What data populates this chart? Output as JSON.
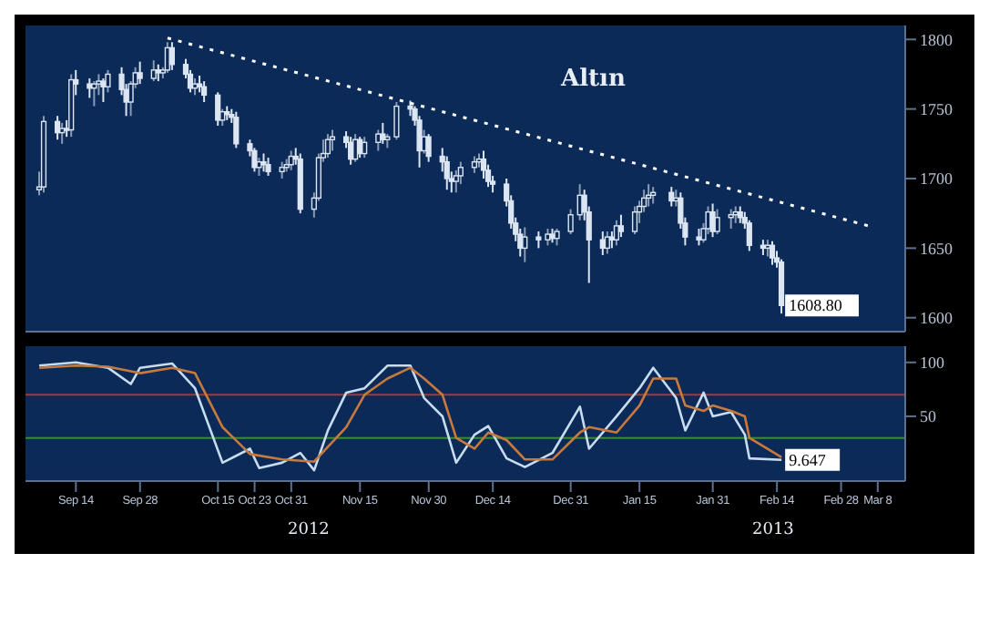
{
  "chart_data": [
    {
      "type": "candlestick",
      "color": "#dce6f2",
      "xlim": [
        "2012-09-03",
        "2013-03-14"
      ],
      "ylim": [
        1590,
        1810
      ],
      "yticks": [
        1600,
        1650,
        1700,
        1750,
        1800
      ],
      "tick_labels": "y",
      "marker": "none",
      "x": [
        "2012-09-06",
        "2012-09-07",
        "2012-09-10",
        "2012-09-11",
        "2012-09-12",
        "2012-09-13",
        "2012-09-14",
        "2012-09-17",
        "2012-09-18",
        "2012-09-19",
        "2012-09-20",
        "2012-09-21",
        "2012-09-24",
        "2012-09-25",
        "2012-09-26",
        "2012-09-27",
        "2012-09-28",
        "2012-10-01",
        "2012-10-02",
        "2012-10-03",
        "2012-10-04",
        "2012-10-05",
        "2012-10-08",
        "2012-10-09",
        "2012-10-10",
        "2012-10-11",
        "2012-10-12",
        "2012-10-15",
        "2012-10-16",
        "2012-10-17",
        "2012-10-18",
        "2012-10-19",
        "2012-10-22",
        "2012-10-23",
        "2012-10-24",
        "2012-10-25",
        "2012-10-26",
        "2012-10-29",
        "2012-10-30",
        "2012-10-31",
        "2012-11-01",
        "2012-11-02",
        "2012-11-05",
        "2012-11-06",
        "2012-11-07",
        "2012-11-08",
        "2012-11-09",
        "2012-11-12",
        "2012-11-13",
        "2012-11-14",
        "2012-11-15",
        "2012-11-16",
        "2012-11-19",
        "2012-11-20",
        "2012-11-21",
        "2012-11-23",
        "2012-11-26",
        "2012-11-27",
        "2012-11-28",
        "2012-11-29",
        "2012-11-30",
        "2012-12-03",
        "2012-12-04",
        "2012-12-05",
        "2012-12-06",
        "2012-12-07",
        "2012-12-10",
        "2012-12-11",
        "2012-12-12",
        "2012-12-13",
        "2012-12-14",
        "2012-12-17",
        "2012-12-18",
        "2012-12-19",
        "2012-12-20",
        "2012-12-21",
        "2012-12-24",
        "2012-12-26",
        "2012-12-27",
        "2012-12-28",
        "2012-12-31",
        "2013-01-02",
        "2013-01-03",
        "2013-01-04",
        "2013-01-07",
        "2013-01-08",
        "2013-01-09",
        "2013-01-10",
        "2013-01-11",
        "2013-01-14",
        "2013-01-15",
        "2013-01-16",
        "2013-01-17",
        "2013-01-18",
        "2013-01-22",
        "2013-01-23",
        "2013-01-24",
        "2013-01-25",
        "2013-01-28",
        "2013-01-29",
        "2013-01-30",
        "2013-01-31",
        "2013-02-01",
        "2013-02-04",
        "2013-02-05",
        "2013-02-06",
        "2013-02-07",
        "2013-02-08",
        "2013-02-11",
        "2013-02-12",
        "2013-02-13",
        "2013-02-14",
        "2013-02-15"
      ],
      "ohlc": [
        [
          1692,
          1705,
          1688,
          1694
        ],
        [
          1694,
          1745,
          1690,
          1741
        ],
        [
          1741,
          1745,
          1728,
          1733
        ],
        [
          1733,
          1740,
          1725,
          1736
        ],
        [
          1736,
          1742,
          1730,
          1735
        ],
        [
          1735,
          1775,
          1730,
          1771
        ],
        [
          1771,
          1778,
          1760,
          1768
        ],
        [
          1768,
          1772,
          1758,
          1765
        ],
        [
          1765,
          1770,
          1752,
          1768
        ],
        [
          1768,
          1775,
          1760,
          1770
        ],
        [
          1770,
          1772,
          1755,
          1766
        ],
        [
          1766,
          1778,
          1762,
          1775
        ],
        [
          1775,
          1780,
          1760,
          1764
        ],
        [
          1764,
          1768,
          1745,
          1755
        ],
        [
          1755,
          1770,
          1745,
          1768
        ],
        [
          1768,
          1780,
          1765,
          1776
        ],
        [
          1776,
          1784,
          1768,
          1772
        ],
        [
          1772,
          1785,
          1770,
          1778
        ],
        [
          1778,
          1782,
          1770,
          1776
        ],
        [
          1776,
          1780,
          1772,
          1778
        ],
        [
          1778,
          1798,
          1776,
          1794
        ],
        [
          1794,
          1798,
          1778,
          1782
        ],
        [
          1782,
          1786,
          1772,
          1775
        ],
        [
          1775,
          1778,
          1762,
          1765
        ],
        [
          1765,
          1772,
          1760,
          1768
        ],
        [
          1768,
          1774,
          1762,
          1766
        ],
        [
          1766,
          1770,
          1755,
          1760
        ],
        [
          1760,
          1762,
          1738,
          1742
        ],
        [
          1742,
          1750,
          1738,
          1748
        ],
        [
          1748,
          1752,
          1742,
          1746
        ],
        [
          1746,
          1750,
          1740,
          1744
        ],
        [
          1744,
          1748,
          1722,
          1725
        ],
        [
          1725,
          1728,
          1716,
          1720
        ],
        [
          1720,
          1722,
          1705,
          1708
        ],
        [
          1708,
          1715,
          1702,
          1712
        ],
        [
          1712,
          1718,
          1705,
          1710
        ],
        [
          1710,
          1715,
          1702,
          1705
        ],
        [
          1705,
          1712,
          1700,
          1708
        ],
        [
          1708,
          1714,
          1705,
          1710
        ],
        [
          1710,
          1720,
          1706,
          1716
        ],
        [
          1716,
          1722,
          1710,
          1714
        ],
        [
          1714,
          1718,
          1675,
          1678
        ],
        [
          1678,
          1690,
          1672,
          1686
        ],
        [
          1686,
          1718,
          1684,
          1715
        ],
        [
          1715,
          1728,
          1712,
          1718
        ],
        [
          1718,
          1732,
          1715,
          1728
        ],
        [
          1728,
          1735,
          1720,
          1730
        ],
        [
          1730,
          1734,
          1722,
          1726
        ],
        [
          1726,
          1730,
          1710,
          1714
        ],
        [
          1714,
          1732,
          1712,
          1728
        ],
        [
          1728,
          1730,
          1715,
          1718
        ],
        [
          1718,
          1730,
          1715,
          1726
        ],
        [
          1726,
          1735,
          1720,
          1732
        ],
        [
          1732,
          1740,
          1725,
          1728
        ],
        [
          1728,
          1732,
          1722,
          1730
        ],
        [
          1730,
          1755,
          1728,
          1752
        ],
        [
          1752,
          1756,
          1745,
          1750
        ],
        [
          1750,
          1752,
          1738,
          1742
        ],
        [
          1742,
          1745,
          1708,
          1720
        ],
        [
          1720,
          1735,
          1718,
          1730
        ],
        [
          1730,
          1732,
          1712,
          1716
        ],
        [
          1716,
          1722,
          1705,
          1712
        ],
        [
          1712,
          1716,
          1692,
          1700
        ],
        [
          1700,
          1705,
          1690,
          1698
        ],
        [
          1698,
          1706,
          1690,
          1702
        ],
        [
          1702,
          1712,
          1696,
          1708
        ],
        [
          1708,
          1716,
          1704,
          1712
        ],
        [
          1712,
          1718,
          1708,
          1714
        ],
        [
          1714,
          1720,
          1700,
          1706
        ],
        [
          1706,
          1710,
          1694,
          1698
        ],
        [
          1698,
          1702,
          1690,
          1696
        ],
        [
          1696,
          1700,
          1680,
          1684
        ],
        [
          1684,
          1688,
          1664,
          1668
        ],
        [
          1668,
          1672,
          1655,
          1660
        ],
        [
          1660,
          1664,
          1644,
          1650
        ],
        [
          1650,
          1665,
          1640,
          1658
        ],
        [
          1658,
          1662,
          1650,
          1656
        ],
        [
          1656,
          1664,
          1652,
          1660
        ],
        [
          1660,
          1664,
          1654,
          1657
        ],
        [
          1657,
          1664,
          1652,
          1662
        ],
        [
          1662,
          1678,
          1660,
          1674
        ],
        [
          1674,
          1696,
          1670,
          1688
        ],
        [
          1688,
          1692,
          1670,
          1676
        ],
        [
          1676,
          1680,
          1625,
          1656
        ],
        [
          1656,
          1662,
          1645,
          1650
        ],
        [
          1650,
          1662,
          1646,
          1658
        ],
        [
          1658,
          1662,
          1650,
          1656
        ],
        [
          1656,
          1670,
          1652,
          1666
        ],
        [
          1666,
          1674,
          1658,
          1662
        ],
        [
          1662,
          1680,
          1660,
          1676
        ],
        [
          1676,
          1684,
          1668,
          1680
        ],
        [
          1680,
          1692,
          1676,
          1686
        ],
        [
          1686,
          1696,
          1680,
          1688
        ],
        [
          1688,
          1694,
          1682,
          1690
        ],
        [
          1690,
          1694,
          1680,
          1684
        ],
        [
          1684,
          1692,
          1680,
          1686
        ],
        [
          1686,
          1690,
          1664,
          1668
        ],
        [
          1668,
          1672,
          1652,
          1658
        ],
        [
          1658,
          1664,
          1652,
          1656
        ],
        [
          1656,
          1668,
          1654,
          1664
        ],
        [
          1664,
          1680,
          1660,
          1676
        ],
        [
          1676,
          1682,
          1658,
          1662
        ],
        [
          1662,
          1678,
          1660,
          1672
        ],
        [
          1672,
          1678,
          1664,
          1674
        ],
        [
          1674,
          1680,
          1668,
          1676
        ],
        [
          1676,
          1680,
          1668,
          1672
        ],
        [
          1672,
          1676,
          1664,
          1668
        ],
        [
          1668,
          1670,
          1648,
          1652
        ],
        [
          1652,
          1656,
          1645,
          1650
        ],
        [
          1650,
          1656,
          1644,
          1652
        ],
        [
          1652,
          1655,
          1638,
          1643
        ],
        [
          1643,
          1648,
          1636,
          1640
        ],
        [
          1640,
          1642,
          1603,
          1608.8
        ]
      ],
      "series": [
        {
          "type": "line",
          "x": [
            "2012-10-04",
            "2013-03-06"
          ],
          "values": [
            1801,
            1666
          ],
          "color": "#ffffff",
          "line_style": "dotted"
        }
      ],
      "annotations": [
        "Altın",
        {
          "text": "1608.80",
          "x": "2013-02-15",
          "y": 1608.8
        }
      ]
    },
    {
      "type": "line",
      "marker": "none",
      "xlim": [
        "2012-09-03",
        "2013-03-14"
      ],
      "ylim": [
        -10,
        115
      ],
      "yticks": [
        50,
        100
      ],
      "xticks": [
        {
          "value": "2012-09-14",
          "label": "Sep 14"
        },
        {
          "value": "2012-09-28",
          "label": "Sep 28"
        },
        {
          "value": "2012-10-15",
          "label": "Oct 15"
        },
        {
          "value": "2012-10-23",
          "label": "Oct 23"
        },
        {
          "value": "2012-10-31",
          "label": "Oct 31"
        },
        {
          "value": "2012-11-15",
          "label": "Nov 15"
        },
        {
          "value": "2012-11-30",
          "label": "Nov 30"
        },
        {
          "value": "2012-12-14",
          "label": "Dec 14"
        },
        {
          "value": "2012-12-31",
          "label": "Dec 31"
        },
        {
          "value": "2013-01-15",
          "label": "Jan 15"
        },
        {
          "value": "2013-01-31",
          "label": "Jan 31"
        },
        {
          "value": "2013-02-14",
          "label": "Feb 14"
        },
        {
          "value": "2013-02-28",
          "label": "Feb 28"
        },
        {
          "value": "2013-03-08",
          "label": "Mar 8"
        }
      ],
      "series": [
        {
          "color": "#c8dcf0",
          "x": [
            "2012-09-06",
            "2012-09-14",
            "2012-09-21",
            "2012-09-26",
            "2012-09-28",
            "2012-10-05",
            "2012-10-10",
            "2012-10-16",
            "2012-10-22",
            "2012-10-24",
            "2012-10-29",
            "2012-11-02",
            "2012-11-05",
            "2012-11-08",
            "2012-11-12",
            "2012-11-16",
            "2012-11-21",
            "2012-11-26",
            "2012-11-29",
            "2012-12-03",
            "2012-12-06",
            "2012-12-10",
            "2012-12-13",
            "2012-12-17",
            "2012-12-21",
            "2012-12-27",
            "2013-01-02",
            "2013-01-04",
            "2013-01-10",
            "2013-01-15",
            "2013-01-18",
            "2013-01-23",
            "2013-01-25",
            "2013-01-29",
            "2013-01-31",
            "2013-02-04",
            "2013-02-07",
            "2013-02-08",
            "2013-02-15"
          ],
          "values": [
            97,
            100,
            95,
            80,
            95,
            99,
            76,
            7,
            20,
            2,
            7,
            16,
            0,
            37,
            72,
            76,
            97,
            97,
            67,
            50,
            7,
            33,
            41,
            11,
            3,
            16,
            59,
            20,
            50,
            76,
            95,
            67,
            37,
            72,
            50,
            54,
            33,
            11,
            9.647
          ]
        },
        {
          "color": "#c87a3c",
          "x": [
            "2012-09-06",
            "2012-09-14",
            "2012-09-21",
            "2012-09-28",
            "2012-10-05",
            "2012-10-10",
            "2012-10-16",
            "2012-10-22",
            "2012-10-29",
            "2012-11-05",
            "2012-11-12",
            "2012-11-16",
            "2012-11-21",
            "2012-11-26",
            "2012-11-29",
            "2012-12-03",
            "2012-12-06",
            "2012-12-10",
            "2012-12-13",
            "2012-12-17",
            "2012-12-21",
            "2012-12-27",
            "2013-01-02",
            "2013-01-04",
            "2013-01-10",
            "2013-01-15",
            "2013-01-18",
            "2013-01-23",
            "2013-01-25",
            "2013-01-29",
            "2013-01-31",
            "2013-02-04",
            "2013-02-07",
            "2013-02-08",
            "2013-02-15"
          ],
          "values": [
            95,
            97,
            96,
            90,
            95,
            90,
            40,
            15,
            10,
            8,
            40,
            70,
            85,
            95,
            85,
            70,
            30,
            20,
            35,
            28,
            10,
            10,
            35,
            40,
            35,
            60,
            85,
            85,
            60,
            55,
            60,
            55,
            50,
            30,
            12
          ]
        }
      ],
      "ref_lines": [
        {
          "axis": "y",
          "value": 70,
          "color": "#a33a3a"
        },
        {
          "axis": "y",
          "value": 30,
          "color": "#3a8a3a"
        }
      ],
      "annotations": [
        "2012",
        "2013",
        {
          "text": "9.647",
          "x": "2013-02-15",
          "y": 9.647
        }
      ]
    }
  ]
}
